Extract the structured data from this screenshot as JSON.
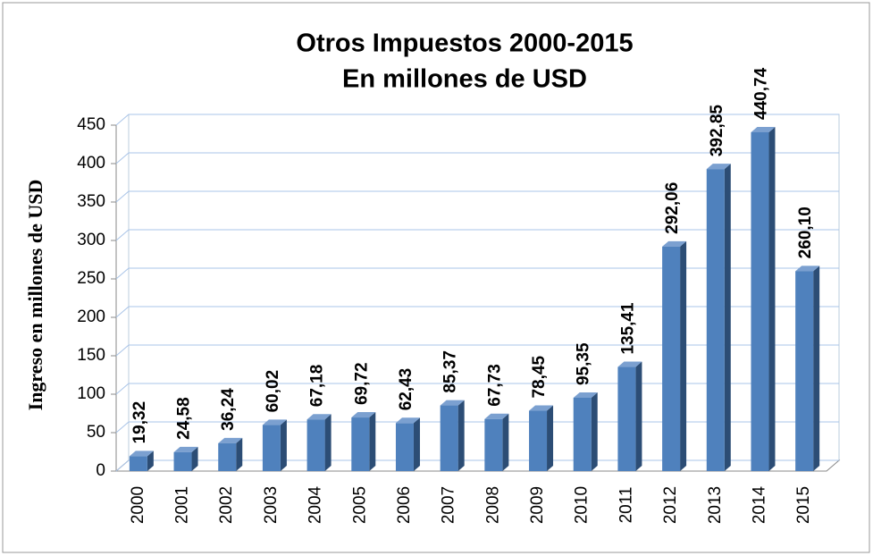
{
  "chart_data": {
    "type": "bar",
    "title": [
      "Otros Impuestos  2000-2015",
      "En millones de USD"
    ],
    "ylabel": "Ingreso en millones de USD",
    "categories": [
      "2000",
      "2001",
      "2002",
      "2003",
      "2004",
      "2005",
      "2006",
      "2007",
      "2008",
      "2009",
      "2010",
      "2011",
      "2012",
      "2013",
      "2014",
      "2015"
    ],
    "values": [
      19.32,
      24.58,
      36.24,
      60.02,
      67.18,
      69.72,
      62.43,
      85.37,
      67.73,
      78.45,
      95.35,
      135.41,
      292.06,
      392.85,
      440.74,
      260.1
    ],
    "value_labels": [
      "19,32",
      "24,58",
      "36,24",
      "60,02",
      "67,18",
      "69,72",
      "62,43",
      "85,37",
      "67,73",
      "78,45",
      "95,35",
      "135,41",
      "292,06",
      "392,85",
      "440,74",
      "260,10"
    ],
    "color": "#4f81bd",
    "ylim": [
      0,
      450
    ],
    "yticks": [
      0,
      50,
      100,
      150,
      200,
      250,
      300,
      350,
      400,
      450
    ],
    "grid": true
  }
}
